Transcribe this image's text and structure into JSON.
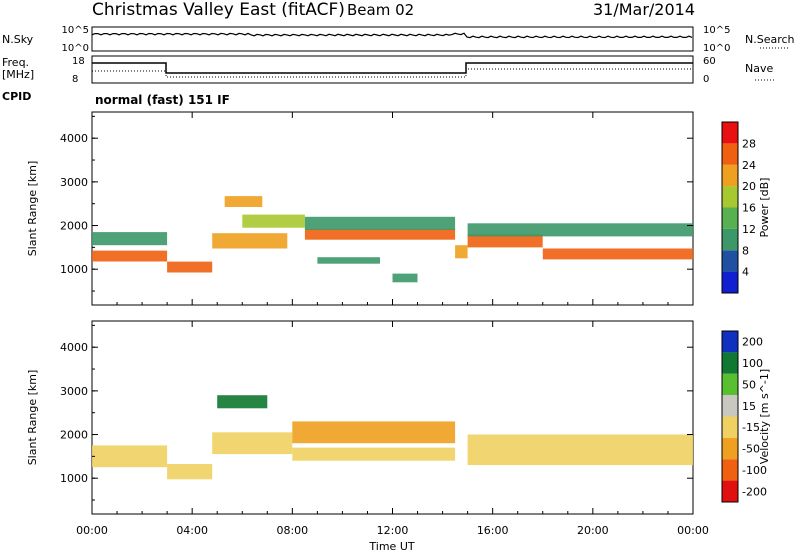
{
  "header": {
    "station": "Christmas Valley East (fitACF)",
    "beam": "Beam 02",
    "date": "31/Mar/2014"
  },
  "panels": {
    "noise": {
      "left_label": "N.Sky",
      "right_label": "N.Search",
      "left_ticks": [
        "10^5",
        "10^0"
      ],
      "right_ticks": [
        "10^5",
        "10^0"
      ]
    },
    "freq": {
      "left_label_1": "Freq.",
      "left_label_2": "[MHz]",
      "right_label": "Nave",
      "left_ticks": [
        "18",
        "8"
      ],
      "right_ticks": [
        "60",
        "0"
      ]
    },
    "cpid": {
      "label": "CPID",
      "value": "normal (fast) 151 IF"
    }
  },
  "chart_data": [
    {
      "type": "heatmap",
      "title": "",
      "xlabel": "",
      "ylabel": "Slant Range [km]",
      "x_ticks": [
        "00:00",
        "04:00",
        "08:00",
        "12:00",
        "16:00",
        "20:00",
        "00:00"
      ],
      "y_ticks": [
        1000,
        2000,
        3000,
        4000
      ],
      "ylim": [
        180,
        4600
      ],
      "colorbar": {
        "label": "Power [dB]",
        "ticks": [
          4,
          8,
          12,
          16,
          20,
          24,
          28
        ],
        "colors": [
          "#1020d0",
          "#2050a0",
          "#3c9868",
          "#58b050",
          "#a8c830",
          "#f0a020",
          "#f06010",
          "#e81010"
        ]
      },
      "bands": [
        {
          "t0": 0.0,
          "t1": 3.0,
          "r": 1300,
          "w": 250,
          "level": 28
        },
        {
          "t0": 0.0,
          "t1": 3.0,
          "r": 1700,
          "w": 300,
          "level": 12
        },
        {
          "t0": 3.0,
          "t1": 4.8,
          "r": 1050,
          "w": 250,
          "level": 28
        },
        {
          "t0": 4.8,
          "t1": 7.8,
          "r": 1650,
          "w": 350,
          "level": 24
        },
        {
          "t0": 5.3,
          "t1": 6.8,
          "r": 2550,
          "w": 250,
          "level": 24
        },
        {
          "t0": 6.0,
          "t1": 8.5,
          "r": 2100,
          "w": 300,
          "level": 20
        },
        {
          "t0": 8.5,
          "t1": 14.5,
          "r": 1800,
          "w": 250,
          "level": 28
        },
        {
          "t0": 8.5,
          "t1": 14.5,
          "r": 2050,
          "w": 300,
          "level": 12
        },
        {
          "t0": 9.0,
          "t1": 11.5,
          "r": 1200,
          "w": 150,
          "level": 12
        },
        {
          "t0": 12.0,
          "t1": 13.0,
          "r": 800,
          "w": 200,
          "level": 12
        },
        {
          "t0": 14.5,
          "t1": 15.0,
          "r": 1400,
          "w": 300,
          "level": 24
        },
        {
          "t0": 15.0,
          "t1": 18.0,
          "r": 1650,
          "w": 300,
          "level": 28
        },
        {
          "t0": 15.0,
          "t1": 24.0,
          "r": 1900,
          "w": 300,
          "level": 12
        },
        {
          "t0": 18.0,
          "t1": 24.0,
          "r": 1350,
          "w": 250,
          "level": 28
        }
      ]
    },
    {
      "type": "heatmap",
      "title": "",
      "xlabel": "Time UT",
      "ylabel": "Slant Range [km]",
      "x_ticks": [
        "00:00",
        "04:00",
        "08:00",
        "12:00",
        "16:00",
        "20:00",
        "00:00"
      ],
      "y_ticks": [
        1000,
        2000,
        3000,
        4000
      ],
      "ylim": [
        180,
        4600
      ],
      "colorbar": {
        "label": "Velocity [m s^-1]",
        "ticks": [
          200,
          100,
          50,
          15,
          -15,
          -50,
          -100,
          -200
        ],
        "colors": [
          "#1030c0",
          "#107830",
          "#58c030",
          "#c8c8c0",
          "#f0d060",
          "#f0a020",
          "#f06010",
          "#e01010"
        ]
      },
      "bands": [
        {
          "t0": 0.0,
          "t1": 3.0,
          "r": 1500,
          "w": 500,
          "level": 0
        },
        {
          "t0": 3.0,
          "t1": 4.8,
          "r": 1150,
          "w": 350,
          "level": 0
        },
        {
          "t0": 4.8,
          "t1": 8.0,
          "r": 1800,
          "w": 500,
          "level": 0
        },
        {
          "t0": 5.0,
          "t1": 7.0,
          "r": 2750,
          "w": 300,
          "level": 100
        },
        {
          "t0": 8.0,
          "t1": 14.5,
          "r": 2050,
          "w": 500,
          "level": -50
        },
        {
          "t0": 8.0,
          "t1": 14.5,
          "r": 1550,
          "w": 300,
          "level": 0
        },
        {
          "t0": 15.0,
          "t1": 24.0,
          "r": 1650,
          "w": 700,
          "level": 0
        }
      ]
    }
  ]
}
